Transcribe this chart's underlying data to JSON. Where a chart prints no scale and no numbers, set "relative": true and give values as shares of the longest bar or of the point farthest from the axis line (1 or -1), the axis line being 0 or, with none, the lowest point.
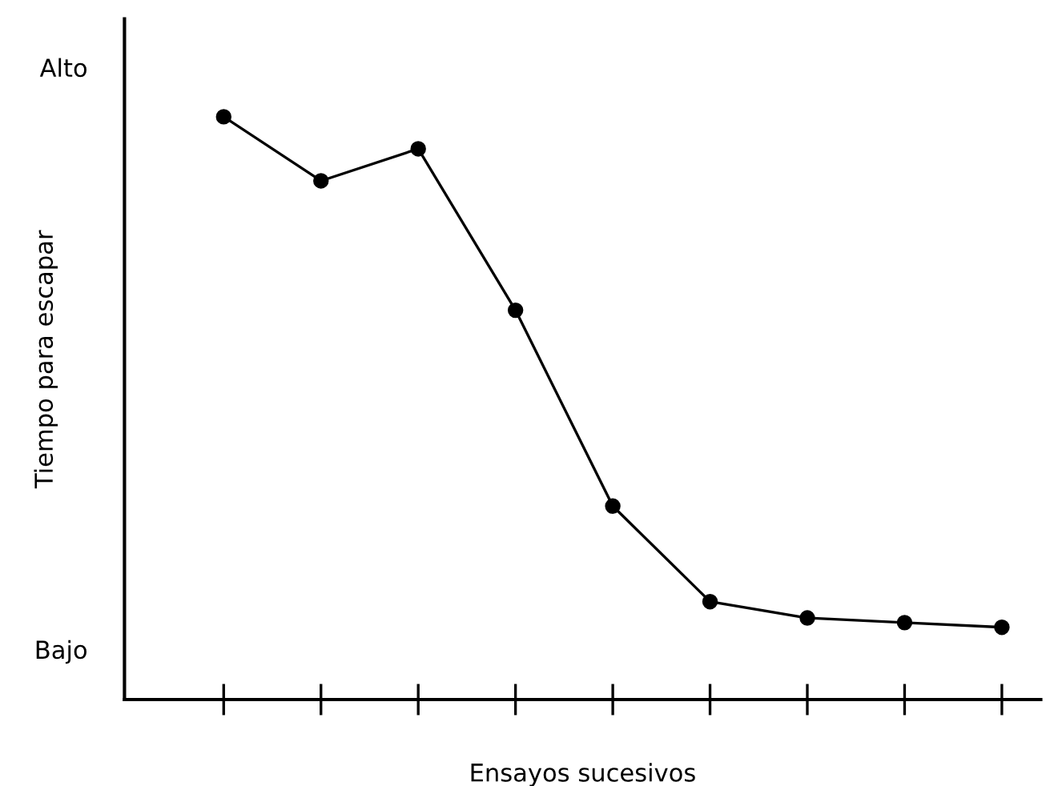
{
  "chart_data": {
    "type": "line",
    "xlabel": "Ensayos sucesivos",
    "ylabel": "Tiempo para escapar",
    "annotations": [
      "Alto",
      "Bajo"
    ],
    "categories": [
      null,
      null,
      null,
      null,
      null,
      null,
      null,
      null,
      null
    ],
    "relative": true,
    "series": [
      {
        "color": "#000000",
        "values": [
          1,
          0.89,
          0.945,
          0.668,
          0.332,
          0.168,
          0.14,
          0.132,
          0.124
        ]
      }
    ],
    "marker": "circle",
    "line_style": "solid",
    "grid": false,
    "legend": false
  }
}
